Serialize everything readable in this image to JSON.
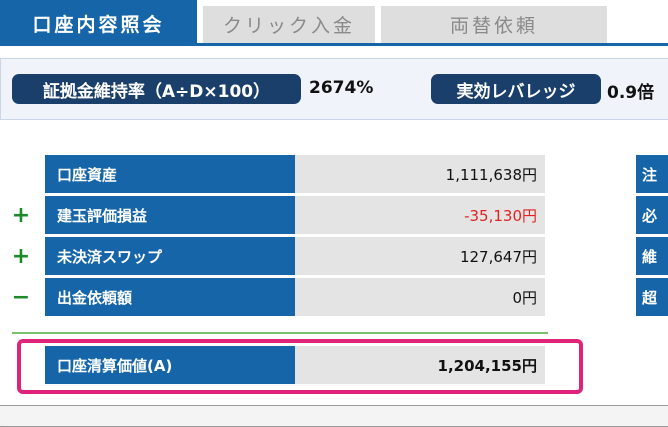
{
  "tabs": [
    {
      "label": "口座内容照会",
      "active": true
    },
    {
      "label": "クリック入金",
      "active": false
    },
    {
      "label": "両替依頼",
      "active": false
    }
  ],
  "summary": {
    "margin_label": "証拠金維持率（A÷D×100）",
    "margin_value": "2674%",
    "leverage_label": "実効レバレッジ",
    "leverage_value": "0.9倍"
  },
  "rows": [
    {
      "sign": "",
      "label": "口座資産",
      "value": "1,111,638円"
    },
    {
      "sign": "+",
      "label": "建玉評価損益",
      "value": "-35,130円"
    },
    {
      "sign": "+",
      "label": "未決済スワップ",
      "value": "127,647円"
    },
    {
      "sign": "−",
      "label": "出金依頼額",
      "value": "0円"
    }
  ],
  "total": {
    "label": "口座清算価値(A)",
    "value": "1,204,155円"
  },
  "right_column": [
    "注",
    "必",
    "維",
    "超"
  ],
  "colors": {
    "primary": "#1565a8",
    "dark_pill": "#1b3f6b",
    "negative": "#e22222",
    "plus_sign": "#1c8a2a",
    "highlight": "#e0237a"
  }
}
